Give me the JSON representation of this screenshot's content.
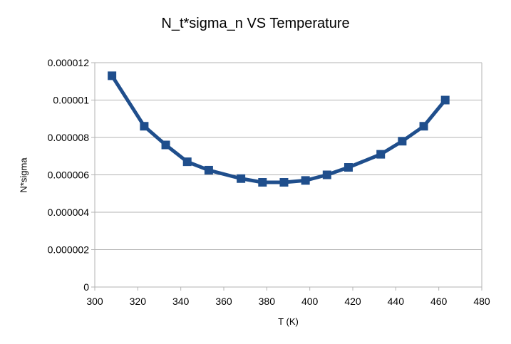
{
  "chart_data": {
    "type": "line",
    "title": "N_t*sigma_n VS Temperature",
    "xlabel": "T (K)",
    "ylabel": "N*sigma",
    "xlim": [
      300,
      480
    ],
    "ylim": [
      0,
      1.2e-05
    ],
    "x_ticks": [
      300,
      320,
      340,
      360,
      380,
      400,
      420,
      440,
      460,
      480
    ],
    "y_ticks": [
      "0",
      "0.000002",
      "0.000004",
      "0.000006",
      "0.000008",
      "0.00001",
      "0.000012"
    ],
    "y_tick_values": [
      0,
      2e-06,
      4e-06,
      6e-06,
      8e-06,
      1e-05,
      1.2e-05
    ],
    "grid": "horizontal",
    "legend": "none",
    "series": [
      {
        "color": "#1f4e8c",
        "marker": "square",
        "x": [
          308,
          323,
          333,
          343,
          353,
          368,
          378,
          388,
          398,
          408,
          418,
          433,
          443,
          453,
          463
        ],
        "y": [
          1.13e-05,
          8.6e-06,
          7.6e-06,
          6.7e-06,
          6.25e-06,
          5.8e-06,
          5.6e-06,
          5.6e-06,
          5.7e-06,
          6e-06,
          6.4e-06,
          7.1e-06,
          7.8e-06,
          8.6e-06,
          1e-05
        ]
      }
    ]
  }
}
